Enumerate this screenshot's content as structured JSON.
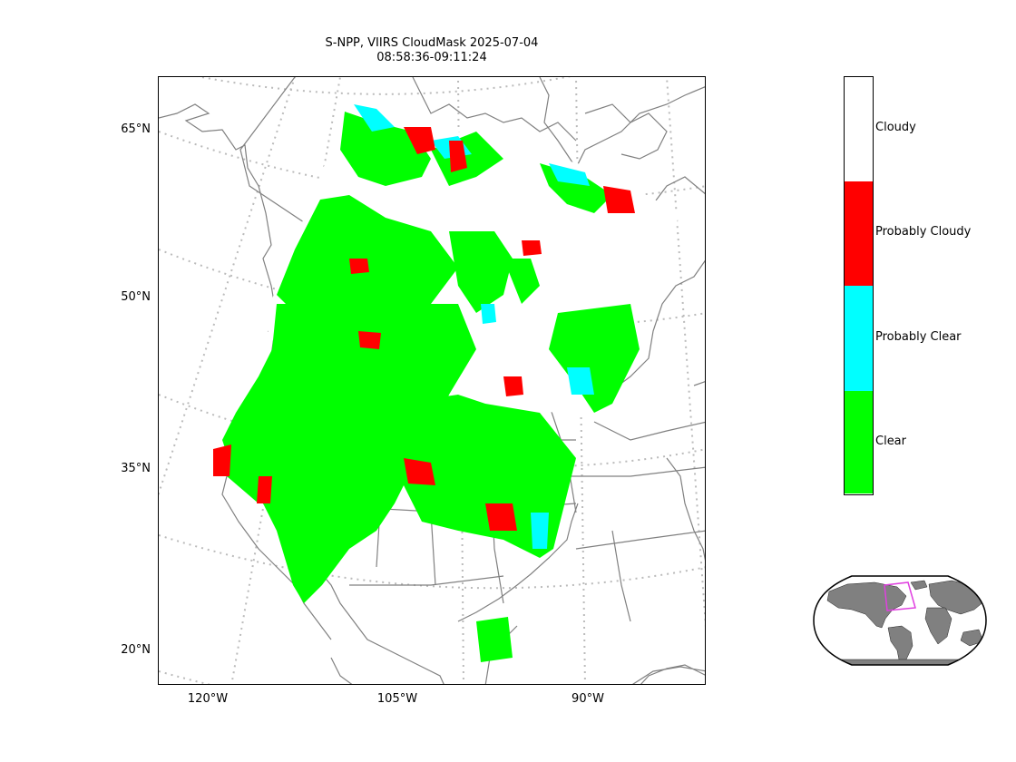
{
  "title": {
    "line1": "S-NPP, VIIRS CloudMask 2025-07-04",
    "line2": "08:58:36-09:11:24"
  },
  "axes": {
    "lat_ticks": [
      "65°N",
      "50°N",
      "35°N",
      "20°N"
    ],
    "lon_ticks": [
      "120°W",
      "105°W",
      "90°W"
    ]
  },
  "legend": {
    "items": [
      {
        "label": "Cloudy",
        "color": "#ffffff"
      },
      {
        "label": "Probably Cloudy",
        "color": "#ff0000"
      },
      {
        "label": "Probably Clear",
        "color": "#00ffff"
      },
      {
        "label": "Clear",
        "color": "#00ff00"
      }
    ]
  },
  "colors": {
    "clear": "#00ff00",
    "probably_clear": "#00ffff",
    "probably_cloudy": "#ff0000",
    "cloudy": "#ffffff",
    "coastline": "#808080",
    "graticule": "#bbbbbb",
    "inset_land": "#808080",
    "inset_box": "#e040e0"
  }
}
